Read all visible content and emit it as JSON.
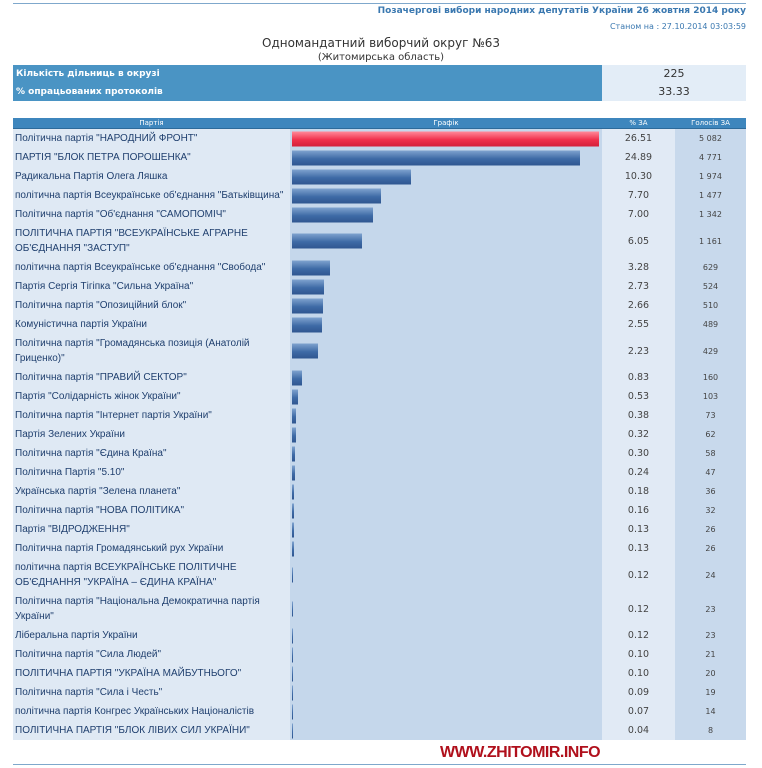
{
  "header": {
    "election": "Позачергові вибори народних депутатів України 26 жовтня 2014 року",
    "as_of": "Станом на : 27.10.2014 03:03:59",
    "title": "Одномандатний виборчий округ №63",
    "subtitle": "(Житомирська область)"
  },
  "summary": [
    {
      "label": "Кількість дільниць в окрузі",
      "value": "225"
    },
    {
      "label": "% опрацьованих протоколів",
      "value": "33.33"
    }
  ],
  "table": {
    "columns": [
      "Партія",
      "Графік",
      "% ЗА",
      "Голосів ЗА"
    ],
    "rows": [
      {
        "party": "Політична партія \"НАРОДНИЙ ФРОНТ\"",
        "pct": "26.51",
        "votes": "5 082"
      },
      {
        "party": "ПАРТІЯ \"БЛОК ПЕТРА ПОРОШЕНКА\"",
        "pct": "24.89",
        "votes": "4 771"
      },
      {
        "party": "Радикальна Партія Олега Ляшка",
        "pct": "10.30",
        "votes": "1 974"
      },
      {
        "party": "політична партія Всеукраїнське об'єднання \"Батьківщина\"",
        "pct": "7.70",
        "votes": "1 477"
      },
      {
        "party": "Політична партія \"Об'єднання \"САМОПОМІЧ\"",
        "pct": "7.00",
        "votes": "1 342"
      },
      {
        "party": "ПОЛІТИЧНА ПАРТІЯ \"ВСЕУКРАЇНСЬКЕ АГРАРНЕ ОБ'ЄДНАННЯ \"ЗАСТУП\"",
        "pct": "6.05",
        "votes": "1 161"
      },
      {
        "party": "політична партія Всеукраїнське об'єднання \"Свобода\"",
        "pct": "3.28",
        "votes": "629"
      },
      {
        "party": "Партія Сергія Тігіпка \"Сильна Україна\"",
        "pct": "2.73",
        "votes": "524"
      },
      {
        "party": "Політична партія \"Опозиційний блок\"",
        "pct": "2.66",
        "votes": "510"
      },
      {
        "party": "Комуністична партія України",
        "pct": "2.55",
        "votes": "489"
      },
      {
        "party": "Політична партія \"Громадянська позиція (Анатолій Гриценко)\"",
        "pct": "2.23",
        "votes": "429"
      },
      {
        "party": "Політична партія \"ПРАВИЙ СЕКТОР\"",
        "pct": "0.83",
        "votes": "160"
      },
      {
        "party": "Партія \"Солідарність жінок України\"",
        "pct": "0.53",
        "votes": "103"
      },
      {
        "party": "Політична партія \"Інтернет партія України\"",
        "pct": "0.38",
        "votes": "73"
      },
      {
        "party": "Партія Зелених України",
        "pct": "0.32",
        "votes": "62"
      },
      {
        "party": "Політична партія \"Єдина Країна\"",
        "pct": "0.30",
        "votes": "58"
      },
      {
        "party": "Політична Партія \"5.10\"",
        "pct": "0.24",
        "votes": "47"
      },
      {
        "party": "Українська партія \"Зелена планета\"",
        "pct": "0.18",
        "votes": "36"
      },
      {
        "party": "Політична партія \"НОВА ПОЛІТИКА\"",
        "pct": "0.16",
        "votes": "32"
      },
      {
        "party": "Партія \"ВІДРОДЖЕННЯ\"",
        "pct": "0.13",
        "votes": "26"
      },
      {
        "party": "Політична партія Громадянський рух України",
        "pct": "0.13",
        "votes": "26"
      },
      {
        "party": "політична партія ВСЕУКРАЇНСЬКЕ ПОЛІТИЧНЕ ОБ'ЄДНАННЯ \"УКРАЇНА – ЄДИНА КРАЇНА\"",
        "pct": "0.12",
        "votes": "24"
      },
      {
        "party": "Політична партія \"Національна Демократична партія України\"",
        "pct": "0.12",
        "votes": "23"
      },
      {
        "party": "Ліберальна партія України",
        "pct": "0.12",
        "votes": "23"
      },
      {
        "party": "Політична партія \"Сила Людей\"",
        "pct": "0.10",
        "votes": "21"
      },
      {
        "party": "ПОЛІТИЧНА ПАРТІЯ \"УКРАЇНА МАЙБУТНЬОГО\"",
        "pct": "0.10",
        "votes": "20"
      },
      {
        "party": "Політична партія \"Сила і Честь\"",
        "pct": "0.09",
        "votes": "19"
      },
      {
        "party": "політична партія Конгрес Українських Націоналістів",
        "pct": "0.07",
        "votes": "14"
      },
      {
        "party": "ПОЛІТИЧНА ПАРТІЯ \"БЛОК ЛІВИХ СИЛ УКРАЇНИ\"",
        "pct": "0.04",
        "votes": "8"
      }
    ]
  },
  "colors": {
    "leader_bar": "#f0304c",
    "bar": "#3e6aa6",
    "header": "#3e86bd"
  },
  "watermark": "WWW.ZHITOMIR.INFO"
}
